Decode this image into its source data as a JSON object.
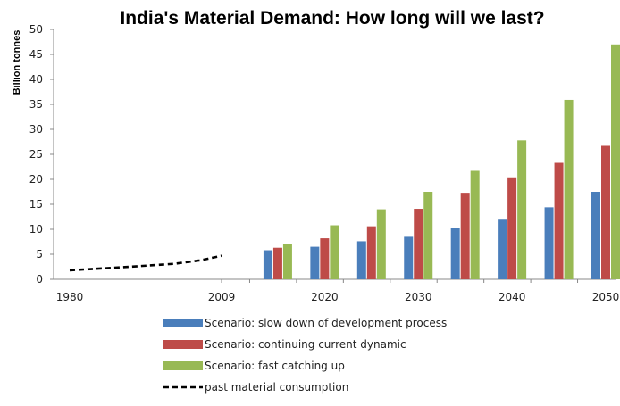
{
  "chart_data": {
    "type": "bar",
    "title": "India's Material Demand: How long will we last?",
    "ylabel": "Billion tonnes",
    "xlabel": "",
    "ylim": [
      0,
      50
    ],
    "yticks": [
      0,
      5,
      10,
      15,
      20,
      25,
      30,
      35,
      40,
      45,
      50
    ],
    "xtick_labels": [
      "1980",
      "2009",
      "2020",
      "2030",
      "2040",
      "2050"
    ],
    "categories": [
      "2015",
      "2020",
      "2025",
      "2030",
      "2035",
      "2040",
      "2045",
      "2050"
    ],
    "series": [
      {
        "name": "Scenario: slow down of development process",
        "color": "#4a7ebb",
        "values": [
          5.8,
          6.5,
          7.6,
          8.5,
          10.2,
          12.1,
          14.4,
          17.5
        ]
      },
      {
        "name": "Scenario: continuing current dynamic",
        "color": "#be4b48",
        "values": [
          6.3,
          8.2,
          10.6,
          14.1,
          17.3,
          20.4,
          23.3,
          26.7
        ]
      },
      {
        "name": "Scenario: fast catching up",
        "color": "#98b954",
        "values": [
          7.1,
          10.8,
          14.0,
          17.5,
          21.7,
          27.8,
          35.9,
          47.0
        ]
      }
    ],
    "line_series": {
      "name": "past material consumption",
      "style": "dashed",
      "color": "#000000",
      "x": [
        1980,
        1990,
        2000,
        2005,
        2009
      ],
      "y": [
        1.8,
        2.4,
        3.1,
        3.8,
        4.7
      ]
    },
    "legend_position": "bottom",
    "grid": false
  }
}
